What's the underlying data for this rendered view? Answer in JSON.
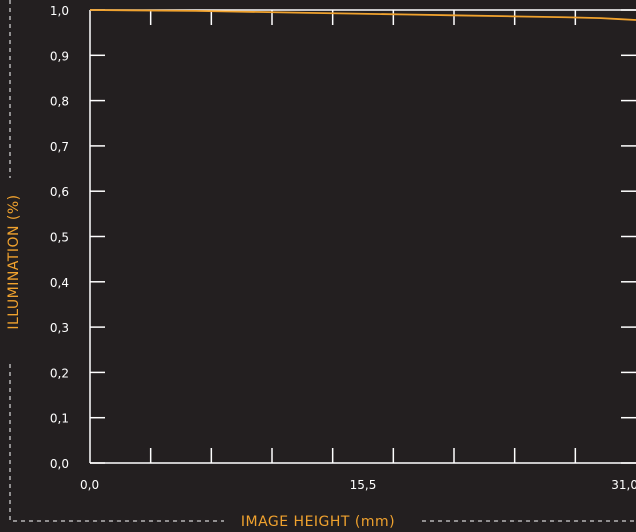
{
  "chart_data": {
    "type": "line",
    "xlabel": "IMAGE HEIGHT (mm)",
    "ylabel": "ILLUMINATION (%)",
    "xlim": [
      0,
      31
    ],
    "ylim": [
      0,
      1
    ],
    "x_ticks": [
      "0,0",
      "15,5",
      "31,0"
    ],
    "y_ticks": [
      "0,0",
      "0,1",
      "0,2",
      "0,3",
      "0,4",
      "0,5",
      "0,6",
      "0,7",
      "0,8",
      "0,9",
      "1,0"
    ],
    "grid": false,
    "colors": {
      "background": "#231f20",
      "axis": "#ffffff",
      "series": "#f0a22e",
      "label": "#f0a22e",
      "dash": "#ffffff"
    },
    "series": [
      {
        "x": [
          0,
          3,
          6,
          9,
          12,
          15,
          18,
          21,
          24,
          27,
          29,
          30,
          31
        ],
        "values": [
          1.0,
          0.999,
          0.998,
          0.996,
          0.994,
          0.992,
          0.99,
          0.988,
          0.986,
          0.984,
          0.982,
          0.98,
          0.978
        ]
      }
    ]
  }
}
